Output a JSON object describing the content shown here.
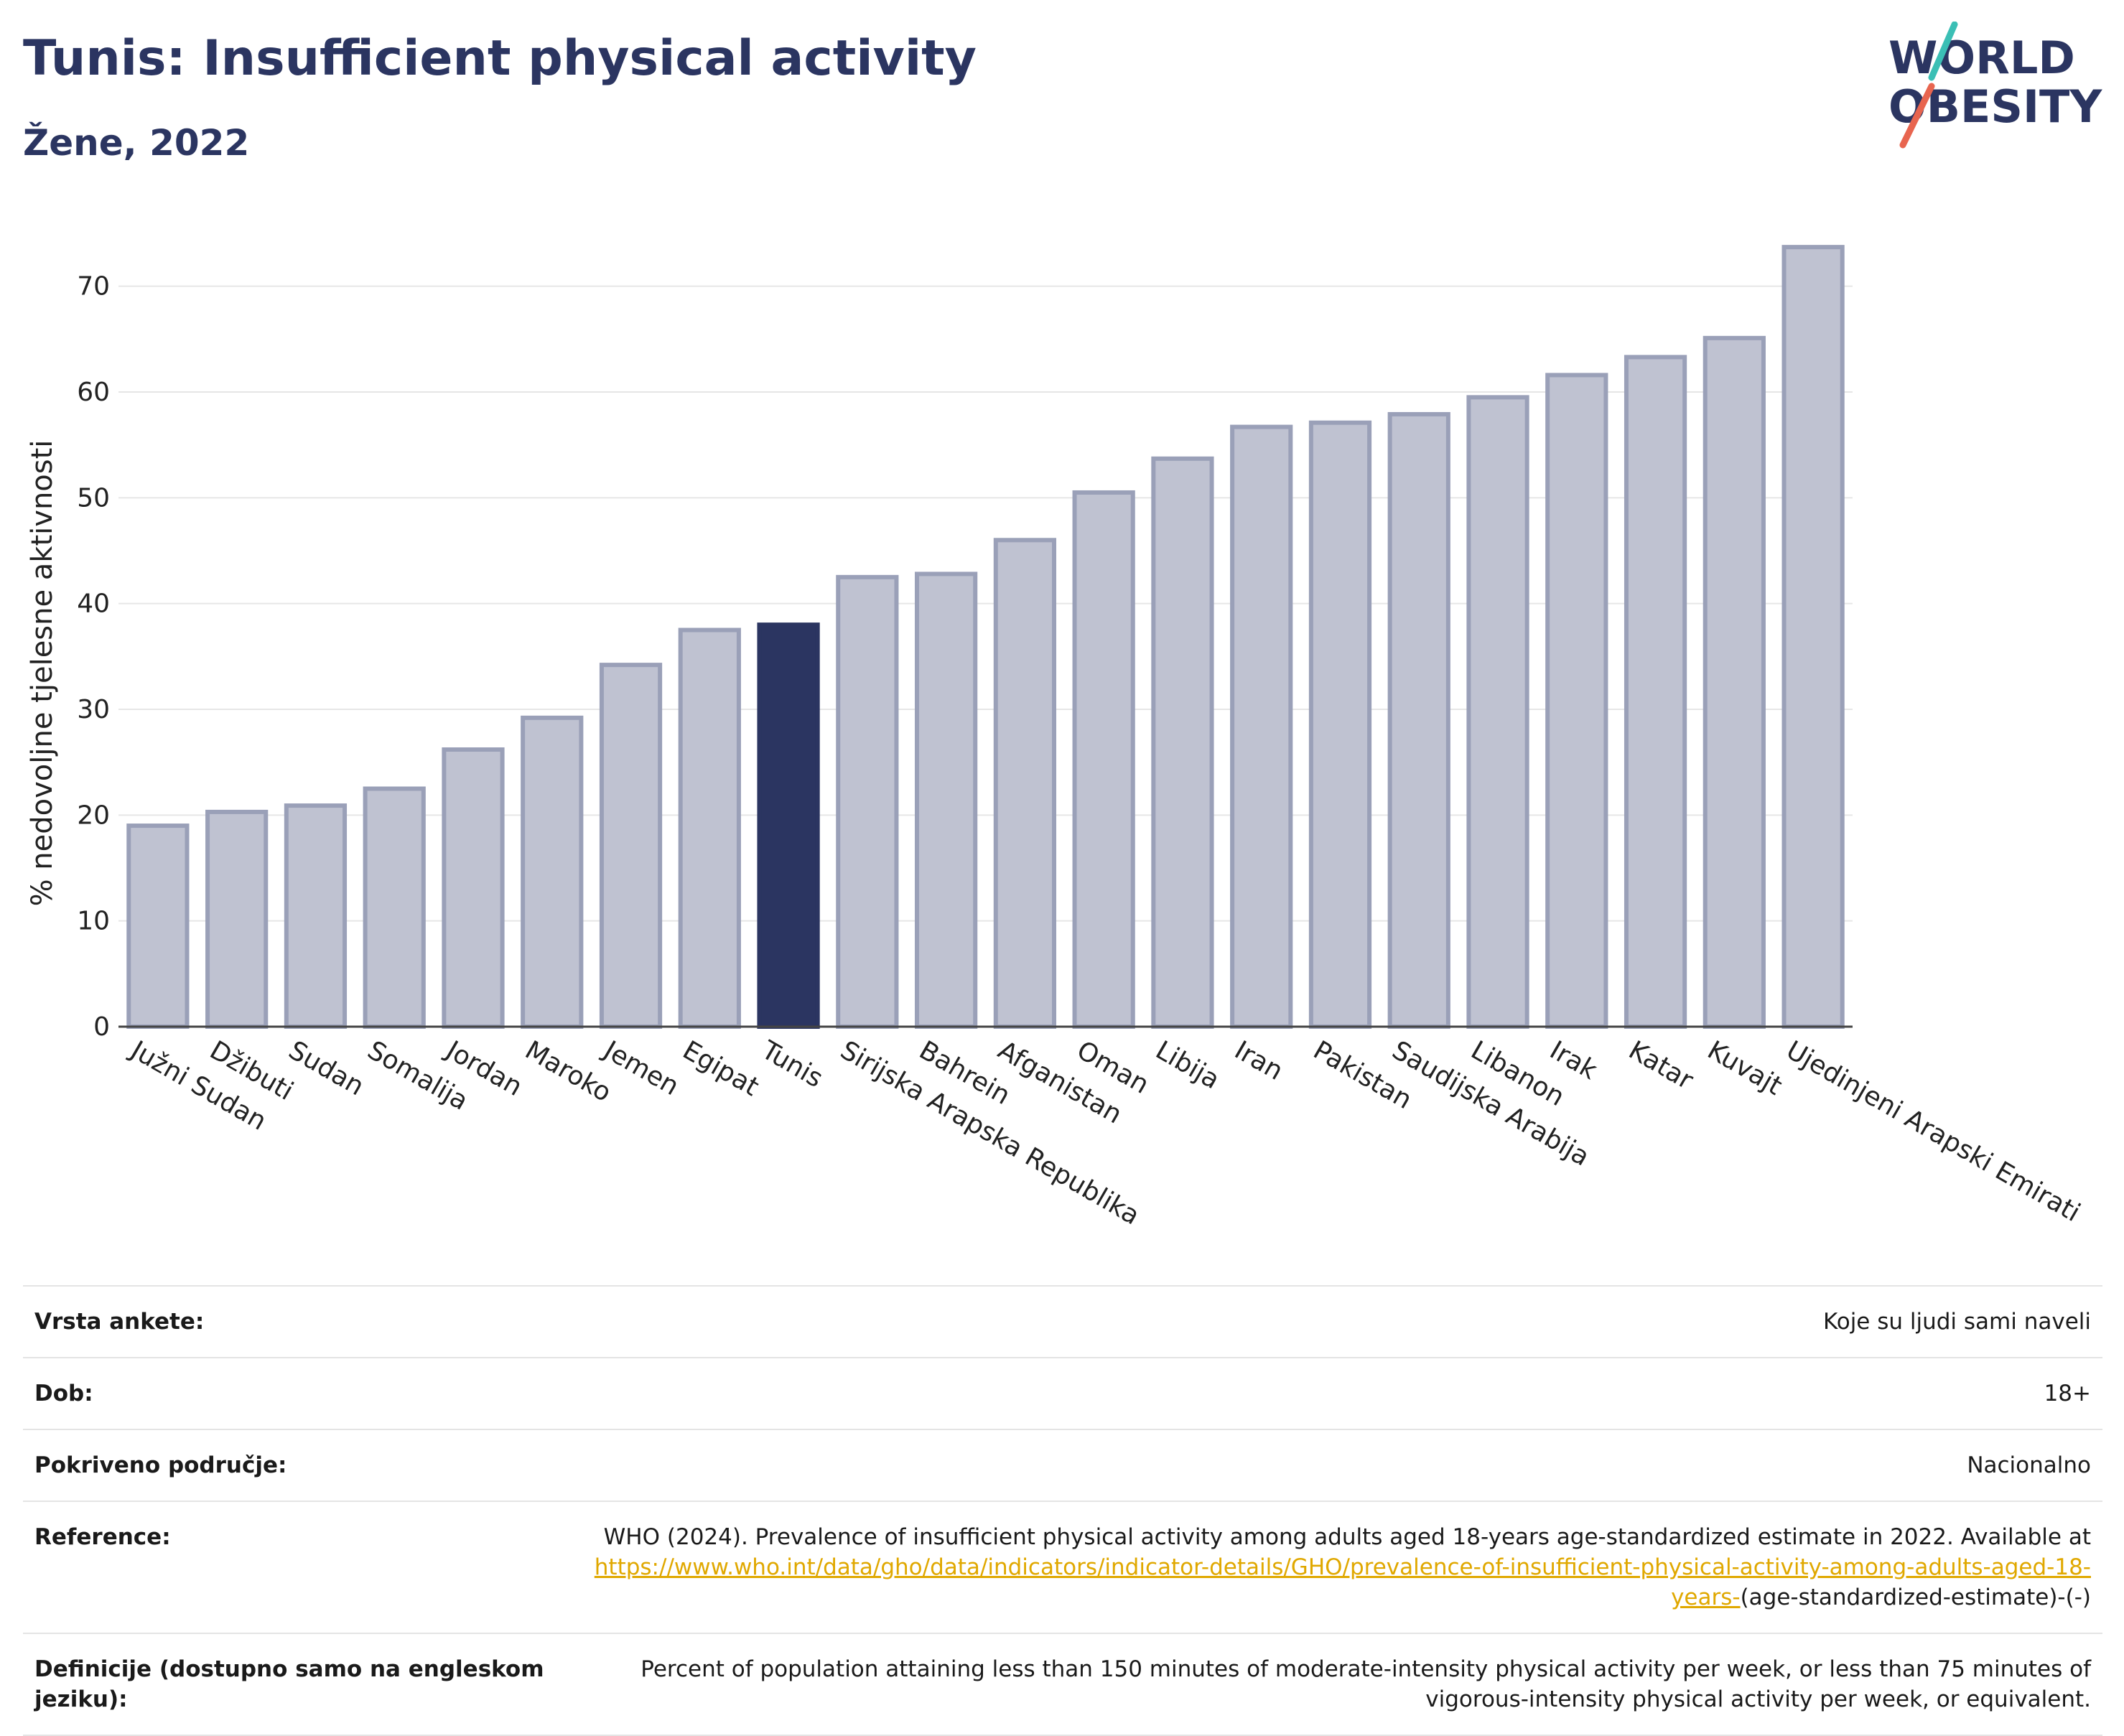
{
  "header": {
    "title": "Tunis: Insufficient physical activity",
    "subtitle": "Žene, 2022",
    "logo_text_top": "WORLD",
    "logo_text_bottom": "OBESITY"
  },
  "colors": {
    "highlight": "#2b3561",
    "bar": "#bfc2d1",
    "bar_border": "#9aa0b8",
    "title": "#2b3561",
    "link": "#e0a800",
    "logo_slash_top": "#3bbfb5",
    "logo_slash_bottom": "#e8654f"
  },
  "chart_data": {
    "type": "bar",
    "title": "Tunis: Insufficient physical activity",
    "subtitle": "Žene, 2022",
    "ylabel": "% nedovoljne tjelesne aktivnosti",
    "xlabel": "",
    "ylim": [
      0,
      75
    ],
    "yticks": [
      0,
      10,
      20,
      30,
      40,
      50,
      60,
      70
    ],
    "grid": true,
    "highlight": "Tunis",
    "categories": [
      "Južni Sudan",
      "Džibuti",
      "Sudan",
      "Somalija",
      "Jordan",
      "Maroko",
      "Jemen",
      "Egipat",
      "Tunis",
      "Sirijska Arapska Republika",
      "Bahrein",
      "Afganistan",
      "Oman",
      "Libija",
      "Iran",
      "Pakistan",
      "Saudijska Arabija",
      "Libanon",
      "Irak",
      "Katar",
      "Kuvajt",
      "Ujedinjeni Arapski Emirati"
    ],
    "values": [
      19.0,
      20.3,
      20.9,
      22.5,
      26.2,
      29.2,
      34.2,
      37.5,
      38.0,
      42.5,
      42.8,
      46.0,
      50.5,
      53.7,
      56.7,
      57.1,
      57.9,
      59.5,
      61.6,
      63.3,
      65.1,
      73.7
    ]
  },
  "info_table": [
    {
      "label": "Vrsta ankete:",
      "value": "Koje su ljudi sami naveli"
    },
    {
      "label": "Dob:",
      "value": "18+"
    },
    {
      "label": "Pokriveno područje:",
      "value": "Nacionalno"
    },
    {
      "label": "Reference:",
      "value_prefix": "WHO (2024). Prevalence of insufficient physical activity among adults aged 18-years age-standardized estimate in 2022. Available at",
      "link": "https://www.who.int/data/gho/data/indicators/indicator-details/GHO/prevalence-of-insufficient-physical-activity-among-adults-aged-18-years-",
      "value_suffix": "(age-standardized-estimate)-(-)"
    },
    {
      "label": "Definicije (dostupno samo na engleskom jeziku):",
      "value": "Percent of population attaining less than 150 minutes of moderate-intensity physical activity per week, or less than 75 minutes of vigorous-intensity physical activity per week, or equivalent."
    }
  ]
}
